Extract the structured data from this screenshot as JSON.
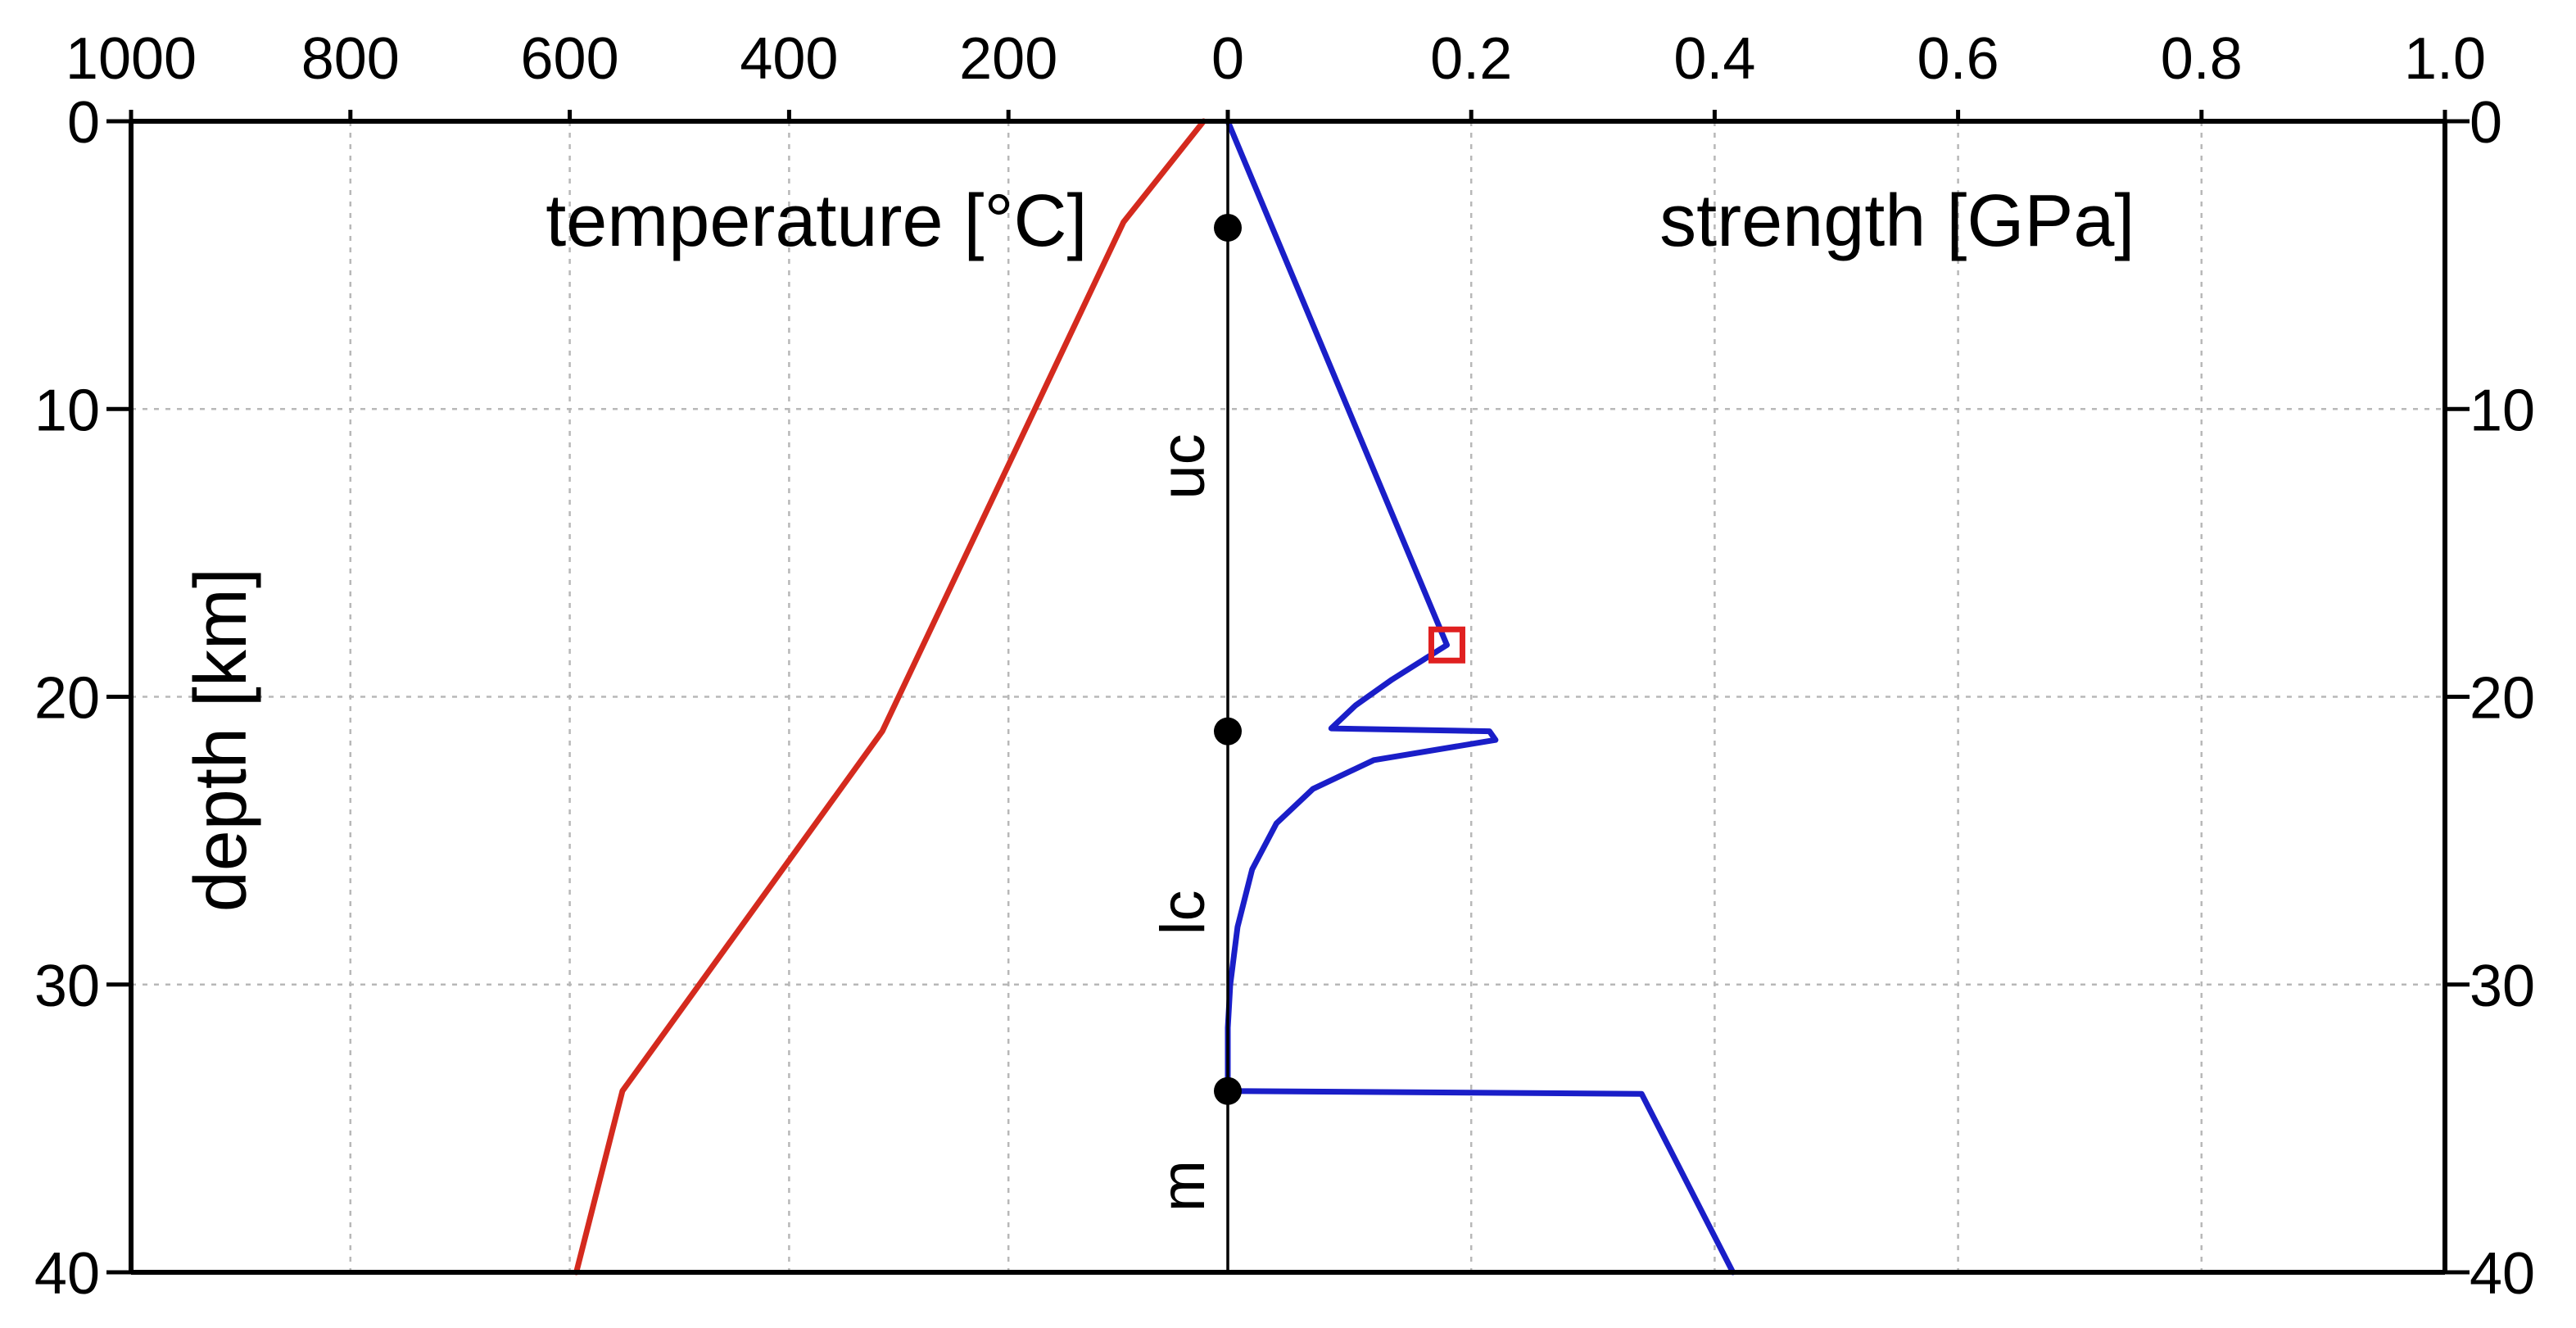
{
  "chart_data": {
    "type": "line",
    "y_axis": {
      "label": "depth [km]",
      "range": [
        0,
        40
      ],
      "ticks": [
        0,
        10,
        20,
        30,
        40
      ],
      "tick_labels": [
        "0",
        "10",
        "20",
        "30",
        "40"
      ]
    },
    "temperature_axis": {
      "label": "temperature [°C]",
      "range": [
        0,
        1000
      ],
      "ticks": [
        1000,
        800,
        600,
        400,
        200,
        0
      ],
      "tick_labels": [
        "1000",
        "800",
        "600",
        "400",
        "200",
        "0"
      ]
    },
    "strength_axis": {
      "label": "strength [GPa]",
      "range": [
        0,
        1.0
      ],
      "ticks": [
        0.2,
        0.4,
        0.6,
        0.8,
        1.0
      ],
      "tick_labels": [
        "0.2",
        "0.4",
        "0.6",
        "0.8",
        "1.0"
      ]
    },
    "series": [
      {
        "name": "temperature",
        "color": "#d42a1e",
        "points": [
          [
            22,
            0
          ],
          [
            95,
            3.5
          ],
          [
            315,
            21.2
          ],
          [
            552,
            33.7
          ],
          [
            594,
            40
          ]
        ]
      },
      {
        "name": "strength",
        "color": "#1a1ec8",
        "points": [
          [
            0,
            0
          ],
          [
            0.18,
            18.2
          ],
          [
            0.165,
            18.6
          ],
          [
            0.135,
            19.4
          ],
          [
            0.105,
            20.3
          ],
          [
            0.085,
            21.1
          ],
          [
            0.215,
            21.2
          ],
          [
            0.22,
            21.5
          ],
          [
            0.12,
            22.2
          ],
          [
            0.07,
            23.2
          ],
          [
            0.04,
            24.4
          ],
          [
            0.02,
            26
          ],
          [
            0.008,
            28
          ],
          [
            0.002,
            30
          ],
          [
            0,
            31.5
          ],
          [
            0,
            33.7
          ],
          [
            0.34,
            33.8
          ],
          [
            0.415,
            40
          ]
        ]
      }
    ],
    "markers": {
      "layer_boundaries": [
        {
          "depth": 3.7
        },
        {
          "depth": 21.2
        },
        {
          "depth": 33.7
        }
      ],
      "highlight": {
        "strength": 0.18,
        "depth": 18.2,
        "color": "#e02020"
      }
    },
    "layers": [
      {
        "label": "uc",
        "depth": 12
      },
      {
        "label": "lc",
        "depth": 27.5
      },
      {
        "label": "m",
        "depth": 37
      }
    ]
  }
}
